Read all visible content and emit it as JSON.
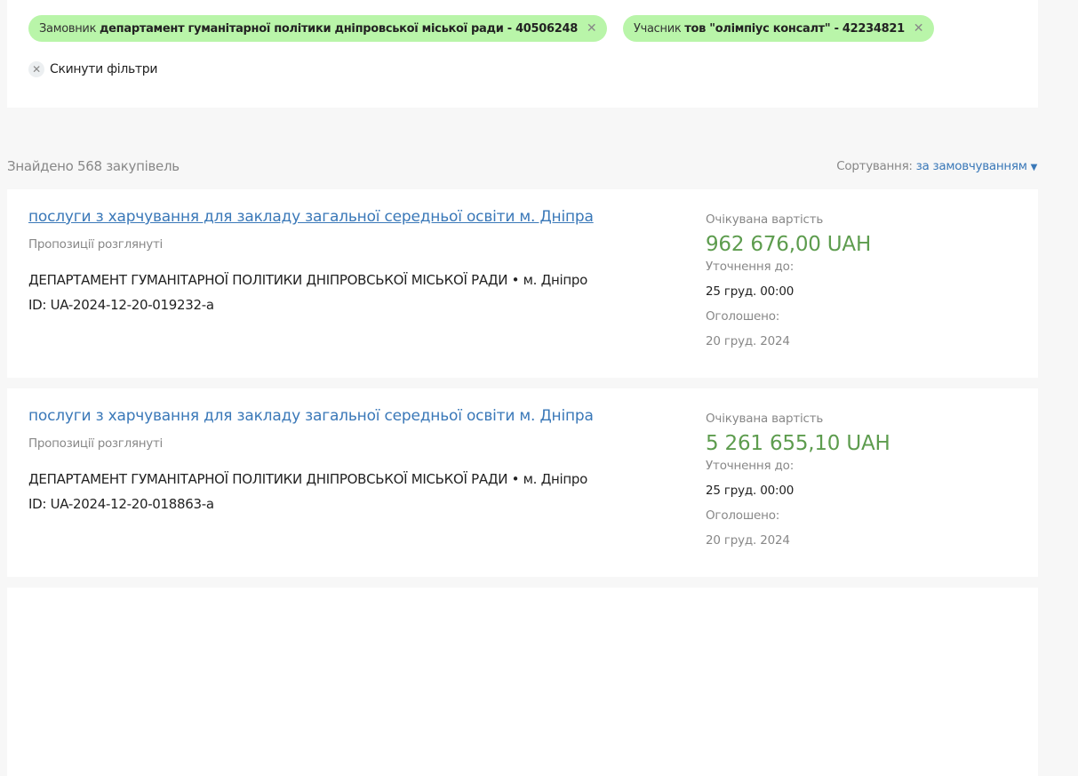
{
  "filters": {
    "chips": [
      {
        "label": "Замовник",
        "value": "департамент гуманітарної політики дніпровської міської ради - 40506248"
      },
      {
        "label": "Учасник",
        "value": "тов \"олімпіус консалт\" - 42234821"
      }
    ],
    "close_glyph": "✕",
    "reset_label": "Скинути фільтри"
  },
  "results": {
    "found": "Знайдено 568 закупівель",
    "sort_label": "Сортування:",
    "sort_value": "за замовчуванням"
  },
  "colors": {
    "chip": "#b9f5a9",
    "link": "#3a78b8",
    "amount": "#5d9c4e"
  },
  "tenders": [
    {
      "title": "послуги з харчування для закладу загальної середньої освіти м. Дніпра",
      "status": "Пропозиції розглянуті",
      "buyer": "ДЕПАРТАМЕНТ ГУМАНІТАРНОЇ ПОЛІТИКИ ДНІПРОВСЬКОЇ МІСЬКОЇ РАДИ • м. Дніпро",
      "id": "ID: UA-2024-12-20-019232-a",
      "expected_label": "Очікувана вартість",
      "amount": "962 676,00 UAH",
      "clarify_label": "Уточнення до:",
      "clarify_date": "25 груд. 00:00",
      "announced_label": "Оголошено:",
      "announced_date": "20 груд. 2024"
    },
    {
      "title": "послуги з харчування для закладу загальної середньої освіти м. Дніпра",
      "status": "Пропозиції розглянуті",
      "buyer": "ДЕПАРТАМЕНТ ГУМАНІТАРНОЇ ПОЛІТИКИ ДНІПРОВСЬКОЇ МІСЬКОЇ РАДИ • м. Дніпро",
      "id": "ID: UA-2024-12-20-018863-a",
      "expected_label": "Очікувана вартість",
      "amount": "5 261 655,10 UAH",
      "clarify_label": "Уточнення до:",
      "clarify_date": "25 груд. 00:00",
      "announced_label": "Оголошено:",
      "announced_date": "20 груд. 2024"
    }
  ]
}
